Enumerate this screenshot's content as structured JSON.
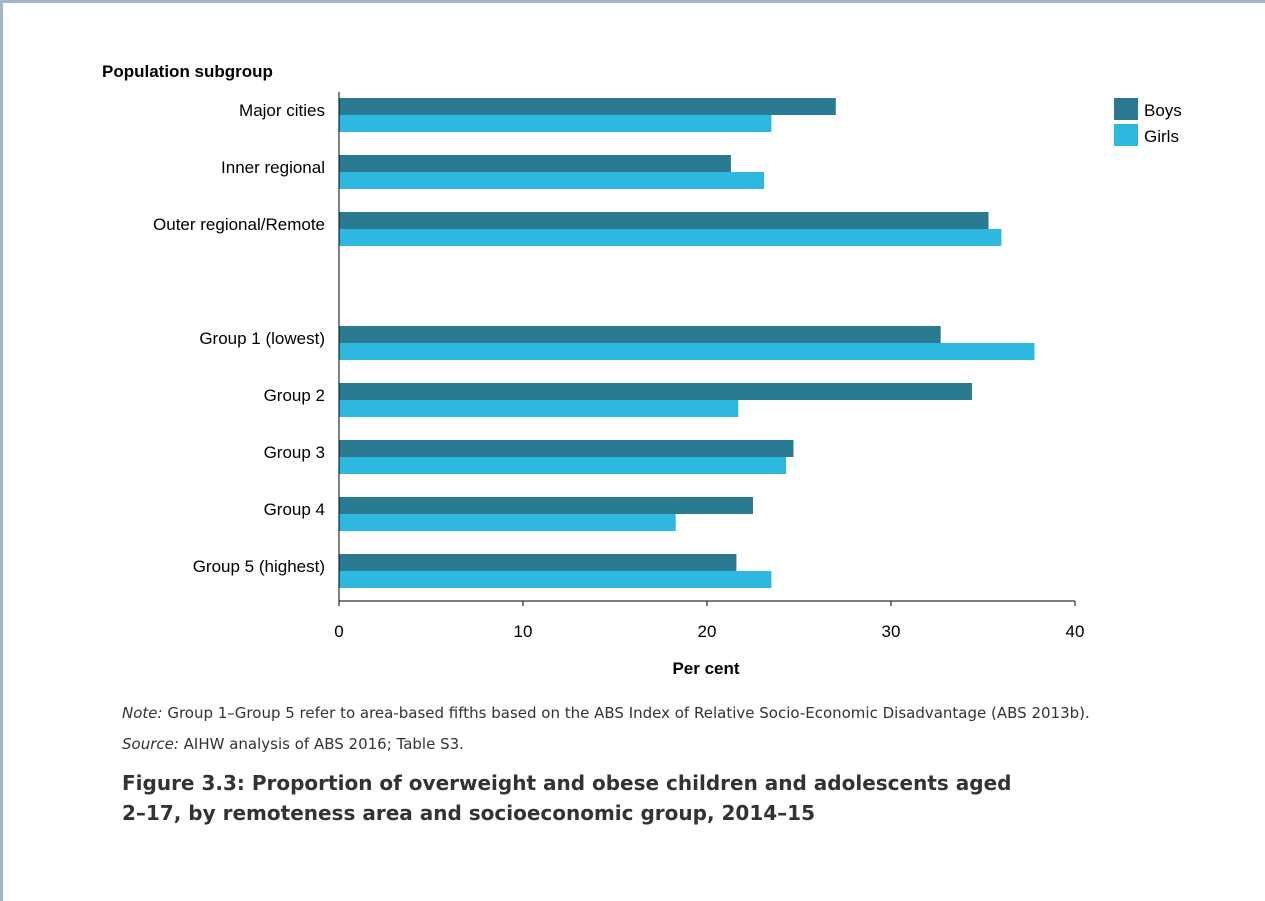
{
  "chart_data": {
    "type": "bar",
    "orientation": "horizontal",
    "ylabel": "Population subgroup",
    "xlabel": "Per cent",
    "xlim": [
      0,
      40
    ],
    "xticks": [
      0,
      10,
      20,
      30,
      40
    ],
    "categories": [
      "Major cities",
      "Inner regional",
      "Outer regional/Remote",
      "Group 1 (lowest)",
      "Group 2",
      "Group 3",
      "Group 4",
      "Group 5 (highest)"
    ],
    "series": [
      {
        "name": "Boys",
        "color": "#2a7b91",
        "values": [
          27.0,
          21.3,
          35.3,
          32.7,
          34.4,
          24.7,
          22.5,
          21.6
        ]
      },
      {
        "name": "Girls",
        "color": "#2eb8df",
        "values": [
          23.5,
          23.1,
          36.0,
          37.8,
          21.7,
          24.3,
          18.3,
          23.5
        ]
      }
    ],
    "grid": false,
    "legend": "top-right"
  },
  "note": {
    "label": "Note:",
    "text": " Group 1–Group 5 refer to area-based fifths based on the ABS Index of Relative Socio-Economic Disadvantage (ABS 2013b)."
  },
  "source": {
    "label": "Source:",
    "text": " AIHW analysis of ABS 2016; Table S3."
  },
  "figure_caption": "Figure 3.3: Proportion of overweight and obese children and adolescents aged 2–17, by remoteness area and socioeconomic group, 2014–15"
}
